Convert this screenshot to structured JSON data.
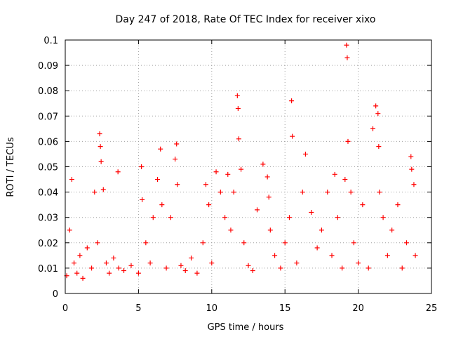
{
  "chart_data": {
    "type": "scatter",
    "title": "Day 247 of 2018, Rate Of TEC Index for receiver xixo",
    "xlabel": "GPS time / hours",
    "ylabel": "ROTI / TECUs",
    "xlim": [
      0,
      25
    ],
    "ylim": [
      0,
      0.1
    ],
    "x_ticks": [
      0,
      5,
      10,
      15,
      20,
      25
    ],
    "y_ticks": [
      0,
      0.01,
      0.02,
      0.03,
      0.04,
      0.05,
      0.06,
      0.07,
      0.08,
      0.09,
      0.1
    ],
    "x_tick_labels": [
      "0",
      "5",
      "10",
      "15",
      "20",
      "25"
    ],
    "y_tick_labels": [
      "0",
      "0.01",
      "0.02",
      "0.03",
      "0.04",
      "0.05",
      "0.06",
      "0.07",
      "0.08",
      "0.09",
      "0.1"
    ],
    "grid": true,
    "marker": "plus",
    "color": "#ff0000",
    "series": [
      {
        "x": [
          0.1,
          0.3,
          0.45,
          0.6,
          0.8,
          1.0,
          1.2,
          1.5,
          1.8,
          2.0,
          2.2,
          2.35,
          2.4,
          2.45,
          2.6,
          2.8,
          3.0,
          3.3,
          3.6,
          3.65,
          4.0,
          4.5,
          5.0,
          5.2,
          5.25,
          5.5,
          5.8,
          6.0,
          6.3,
          6.5,
          6.6,
          6.9,
          7.2,
          7.5,
          7.6,
          7.65,
          7.9,
          8.2,
          8.6,
          9.0,
          9.4,
          9.6,
          9.8,
          10.0,
          10.3,
          10.6,
          10.9,
          11.1,
          11.3,
          11.5,
          11.75,
          11.8,
          11.85,
          12.0,
          12.2,
          12.5,
          12.8,
          13.1,
          13.5,
          13.8,
          13.9,
          14.0,
          14.3,
          14.7,
          15.0,
          15.3,
          15.45,
          15.5,
          15.8,
          16.2,
          16.4,
          16.8,
          17.2,
          17.5,
          17.9,
          18.2,
          18.4,
          18.6,
          18.9,
          19.1,
          19.2,
          19.25,
          19.3,
          19.5,
          19.7,
          20.0,
          20.3,
          20.7,
          21.0,
          21.2,
          21.35,
          21.4,
          21.45,
          21.7,
          22.0,
          22.3,
          22.7,
          23.0,
          23.3,
          23.6,
          23.65,
          23.8,
          23.9
        ],
        "y": [
          0.007,
          0.025,
          0.045,
          0.012,
          0.008,
          0.015,
          0.006,
          0.018,
          0.01,
          0.04,
          0.02,
          0.063,
          0.058,
          0.052,
          0.041,
          0.012,
          0.008,
          0.014,
          0.048,
          0.01,
          0.009,
          0.011,
          0.008,
          0.05,
          0.037,
          0.02,
          0.012,
          0.03,
          0.045,
          0.057,
          0.035,
          0.01,
          0.03,
          0.053,
          0.059,
          0.043,
          0.011,
          0.009,
          0.014,
          0.008,
          0.02,
          0.043,
          0.035,
          0.012,
          0.048,
          0.04,
          0.03,
          0.047,
          0.025,
          0.04,
          0.078,
          0.073,
          0.061,
          0.049,
          0.02,
          0.011,
          0.009,
          0.033,
          0.051,
          0.046,
          0.038,
          0.025,
          0.015,
          0.01,
          0.02,
          0.03,
          0.076,
          0.062,
          0.012,
          0.04,
          0.055,
          0.032,
          0.018,
          0.025,
          0.04,
          0.015,
          0.047,
          0.03,
          0.01,
          0.045,
          0.098,
          0.093,
          0.06,
          0.04,
          0.02,
          0.012,
          0.035,
          0.01,
          0.065,
          0.074,
          0.071,
          0.058,
          0.04,
          0.03,
          0.015,
          0.025,
          0.035,
          0.01,
          0.02,
          0.054,
          0.049,
          0.043,
          0.015
        ]
      }
    ]
  }
}
